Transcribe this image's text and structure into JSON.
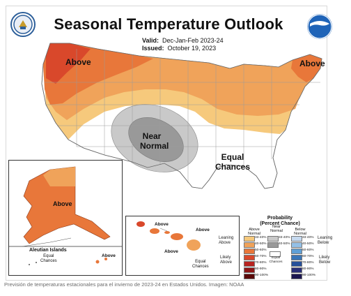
{
  "title": "Seasonal Temperature Outlook",
  "valid_label": "Valid:",
  "valid_value": "Dec-Jan-Feb 2023-24",
  "issued_label": "Issued:",
  "issued_value": "October 19, 2023",
  "logos": {
    "left": "doc-seal-icon",
    "right": "noaa-logo-icon"
  },
  "map_labels": {
    "above_west": "Above",
    "above_east": "Above",
    "near_normal_1": "Near",
    "near_normal_2": "Normal",
    "equal_1": "Equal",
    "equal_2": "Chances",
    "alaska_above": "Above",
    "aleutian_title": "Aleutian Islands",
    "aleutian_equal_1": "Equal",
    "aleutian_equal_2": "Chances",
    "aleutian_above": "Above",
    "hawaii_above_1": "Above",
    "hawaii_above_2": "Above",
    "hawaii_above_3": "Above",
    "hawaii_equal_1": "Equal",
    "hawaii_equal_2": "Chances"
  },
  "legend": {
    "title_1": "Probability",
    "title_2": "(Percent Chance)",
    "col_above_1": "Above",
    "col_above_2": "Normal",
    "col_near_1": "Near",
    "col_near_2": "Normal",
    "col_below_1": "Below",
    "col_below_2": "Normal",
    "leaning_above_1": "Leaning",
    "leaning_above_2": "Above",
    "likely_above_1": "Likely",
    "likely_above_2": "Above",
    "leaning_below_1": "Leaning",
    "leaning_below_2": "Below",
    "likely_below_1": "Likely",
    "likely_below_2": "Below",
    "equal_1": "Equal",
    "equal_2": "Chances",
    "above": [
      {
        "label": "33-40%",
        "color": "#f6c97c"
      },
      {
        "label": "40-50%",
        "color": "#f0a35a"
      },
      {
        "label": "50-60%",
        "color": "#e8773a"
      },
      {
        "label": "60-70%",
        "color": "#d9482b"
      },
      {
        "label": "70-80%",
        "color": "#b82420"
      },
      {
        "label": "80-90%",
        "color": "#8e1616"
      },
      {
        "label": "90-100%",
        "color": "#5b0a0a"
      }
    ],
    "near": [
      {
        "label": "33-40%",
        "color": "#c9c9c9"
      },
      {
        "label": "40-50%",
        "color": "#999999"
      }
    ],
    "below": [
      {
        "label": "33-40%",
        "color": "#c5d9ef"
      },
      {
        "label": "40-50%",
        "color": "#94c0e6"
      },
      {
        "label": "50-60%",
        "color": "#5fa0d6"
      },
      {
        "label": "60-70%",
        "color": "#3976b8"
      },
      {
        "label": "70-80%",
        "color": "#27509a"
      },
      {
        "label": "80-90%",
        "color": "#2a2f78"
      },
      {
        "label": "90-100%",
        "color": "#1b1650"
      }
    ],
    "equal_color": "#ffffff"
  },
  "caption": "Previsión de temperaturas estacionales para el invierno de 2023-24 en Estados Unidos. Imagen: NOAA"
}
